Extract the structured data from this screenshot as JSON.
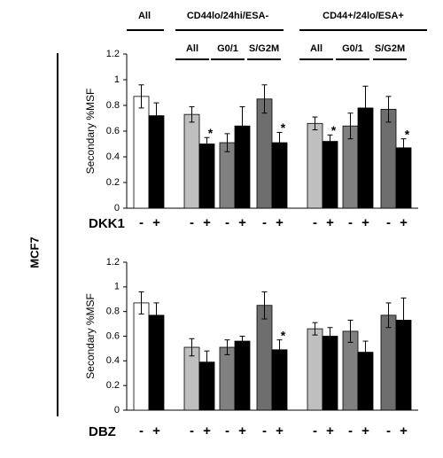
{
  "figure": {
    "side_label": "MCF7",
    "groups": [
      {
        "label": "All"
      },
      {
        "label": "CD44lo/24hi/ESA-",
        "subgroups": [
          "All",
          "G0/1",
          "S/G2M"
        ]
      },
      {
        "label": "CD44+/24lo/ESA+",
        "subgroups": [
          "All",
          "G0/1",
          "S/G2M"
        ]
      }
    ]
  },
  "chart_data": [
    {
      "type": "bar",
      "y_label": "Secondary %MSF",
      "treatment": "DKK1",
      "categories": [
        "-",
        "+",
        "-",
        "+",
        "-",
        "+",
        "-",
        "+",
        "-",
        "+",
        "-",
        "+",
        "-",
        "+"
      ],
      "values": [
        0.87,
        0.72,
        0.73,
        0.5,
        0.51,
        0.64,
        0.85,
        0.51,
        0.66,
        0.52,
        0.64,
        0.78,
        0.77,
        0.47
      ],
      "errors": [
        0.09,
        0.1,
        0.06,
        0.05,
        0.07,
        0.15,
        0.11,
        0.08,
        0.05,
        0.05,
        0.1,
        0.17,
        0.1,
        0.07
      ],
      "colors": [
        "#ffffff",
        "#000000",
        "#bfbfbf",
        "#000000",
        "#808080",
        "#000000",
        "#6e6e6e",
        "#000000",
        "#bfbfbf",
        "#000000",
        "#808080",
        "#000000",
        "#6e6e6e",
        "#000000"
      ],
      "significance": [
        null,
        null,
        null,
        "*",
        null,
        null,
        null,
        "*",
        null,
        "*",
        null,
        null,
        null,
        "*"
      ],
      "ylim": [
        0,
        1.2
      ],
      "yticks": [
        0,
        0.2,
        0.4,
        0.6,
        0.8,
        1,
        1.2
      ]
    },
    {
      "type": "bar",
      "y_label": "Secondary %MSF",
      "treatment": "DBZ",
      "categories": [
        "-",
        "+",
        "-",
        "+",
        "-",
        "+",
        "-",
        "+",
        "-",
        "+",
        "-",
        "+",
        "-",
        "+"
      ],
      "values": [
        0.87,
        0.77,
        0.51,
        0.39,
        0.51,
        0.56,
        0.85,
        0.49,
        0.66,
        0.6,
        0.64,
        0.47,
        0.77,
        0.73
      ],
      "errors": [
        0.09,
        0.1,
        0.07,
        0.09,
        0.06,
        0.04,
        0.11,
        0.08,
        0.05,
        0.07,
        0.09,
        0.09,
        0.1,
        0.18
      ],
      "colors": [
        "#ffffff",
        "#000000",
        "#bfbfbf",
        "#000000",
        "#808080",
        "#000000",
        "#6e6e6e",
        "#000000",
        "#bfbfbf",
        "#000000",
        "#808080",
        "#000000",
        "#6e6e6e",
        "#000000"
      ],
      "significance": [
        null,
        null,
        null,
        null,
        null,
        null,
        null,
        "*",
        null,
        null,
        null,
        null,
        null,
        null
      ],
      "ylim": [
        0,
        1.2
      ],
      "yticks": [
        0,
        0.2,
        0.4,
        0.6,
        0.8,
        1,
        1.2
      ]
    }
  ]
}
